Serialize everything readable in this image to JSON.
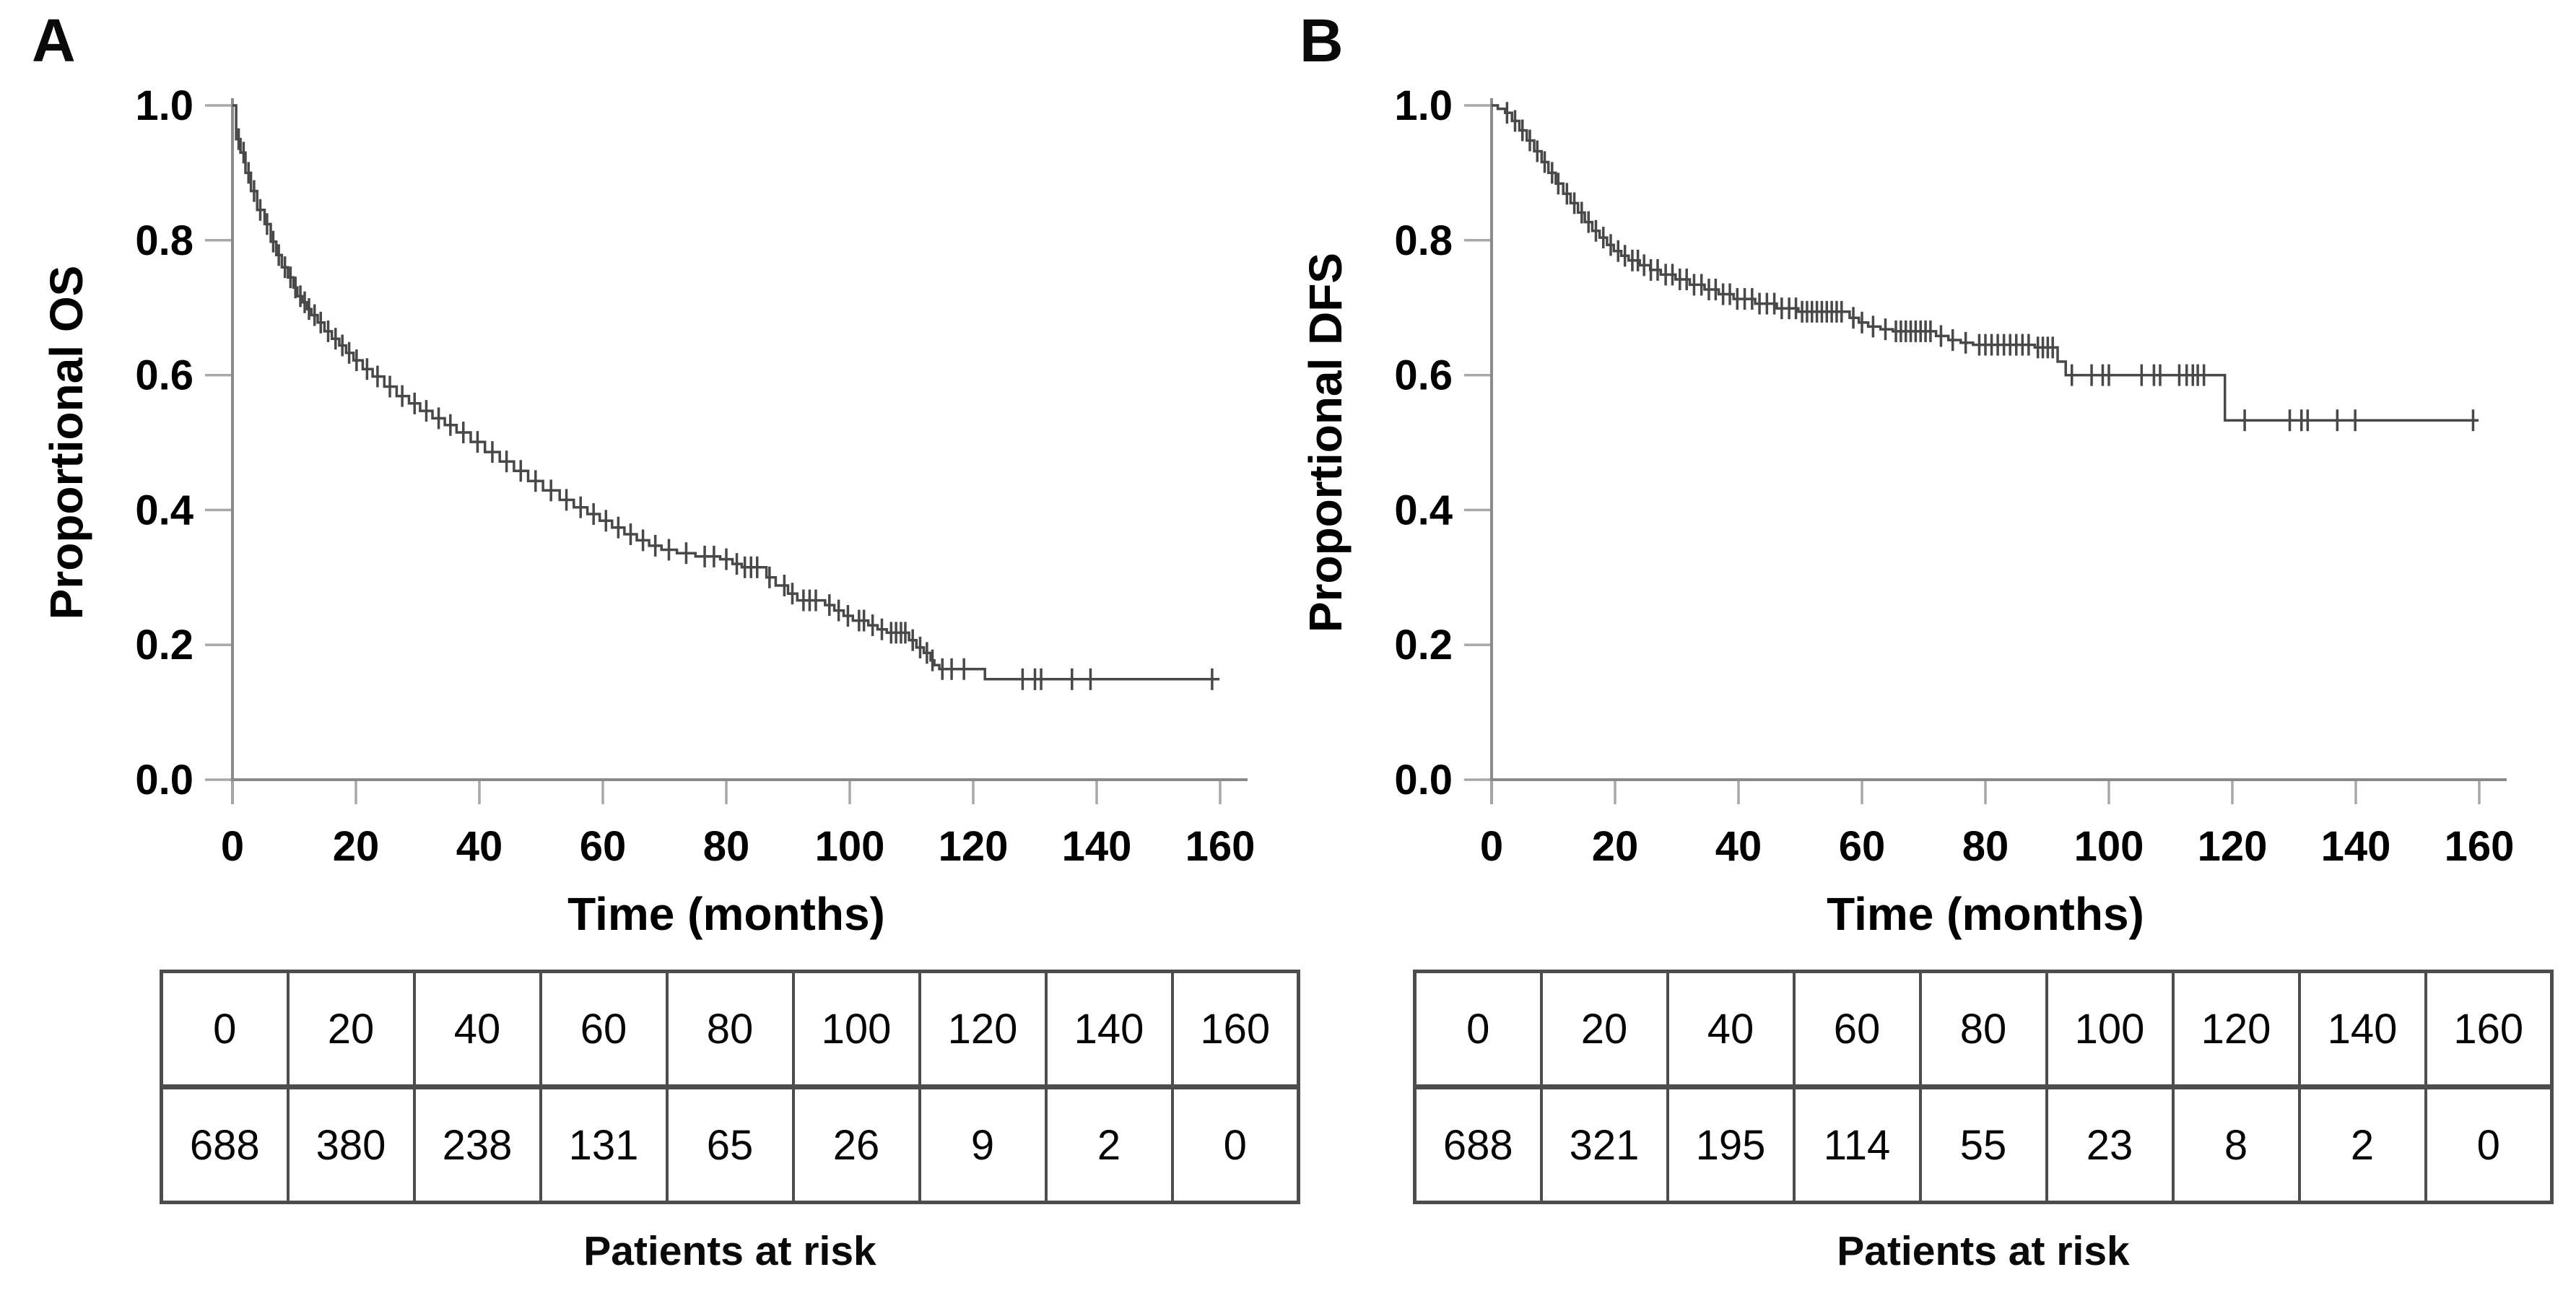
{
  "figure": {
    "background": "#ffffff",
    "text_color": "#000000",
    "curve_color": "#484848",
    "axis_color": "#8a8a8a",
    "tick_color": "#a8a8a8",
    "table_border_color": "#4d4d4d"
  },
  "chart_data": [
    {
      "type": "line",
      "subtype": "kaplan-meier",
      "panel": "A",
      "ylabel": "Proportional OS",
      "xlabel": "Time (months)",
      "xlim": [
        0,
        160
      ],
      "ylim": [
        0.0,
        1.0
      ],
      "x_ticks": [
        0,
        20,
        40,
        60,
        80,
        100,
        120,
        140,
        160
      ],
      "y_ticks": [
        0.0,
        0.2,
        0.4,
        0.6,
        0.8,
        1.0
      ],
      "x_end": 159.9,
      "km_steps": [
        [
          0,
          1.0
        ],
        [
          0.6,
          0.95
        ],
        [
          1.3,
          0.93
        ],
        [
          2.1,
          0.9
        ],
        [
          3,
          0.873
        ],
        [
          4,
          0.845
        ],
        [
          5.2,
          0.824
        ],
        [
          6.2,
          0.798
        ],
        [
          7.1,
          0.778
        ],
        [
          8,
          0.76
        ],
        [
          9,
          0.745
        ],
        [
          9.9,
          0.73
        ],
        [
          10.5,
          0.717
        ],
        [
          11.3,
          0.708
        ],
        [
          12.1,
          0.698
        ],
        [
          12.8,
          0.689
        ],
        [
          13.8,
          0.678
        ],
        [
          14.9,
          0.665
        ],
        [
          16.1,
          0.654
        ],
        [
          17.3,
          0.644
        ],
        [
          18.4,
          0.633
        ],
        [
          19.6,
          0.622
        ],
        [
          21.1,
          0.609
        ],
        [
          22.7,
          0.598
        ],
        [
          24.6,
          0.583
        ],
        [
          26.6,
          0.569
        ],
        [
          28.6,
          0.558
        ],
        [
          30.4,
          0.547
        ],
        [
          32.4,
          0.536
        ],
        [
          34.4,
          0.526
        ],
        [
          36.3,
          0.515
        ],
        [
          38.6,
          0.501
        ],
        [
          40.9,
          0.486
        ],
        [
          43.3,
          0.472
        ],
        [
          45.6,
          0.458
        ],
        [
          47.9,
          0.443
        ],
        [
          50.3,
          0.429
        ],
        [
          53,
          0.415
        ],
        [
          55.3,
          0.404
        ],
        [
          57.5,
          0.394
        ],
        [
          59.5,
          0.384
        ],
        [
          61.5,
          0.374
        ],
        [
          63.5,
          0.364
        ],
        [
          65.5,
          0.355
        ],
        [
          67.5,
          0.347
        ],
        [
          69.5,
          0.341
        ],
        [
          72,
          0.336
        ],
        [
          75,
          0.331
        ],
        [
          79,
          0.327
        ],
        [
          81,
          0.32
        ],
        [
          82.5,
          0.315
        ],
        [
          86.5,
          0.3
        ],
        [
          88,
          0.288
        ],
        [
          90,
          0.276
        ],
        [
          91.5,
          0.266
        ],
        [
          96,
          0.259
        ],
        [
          97.5,
          0.251
        ],
        [
          99,
          0.243
        ],
        [
          100.5,
          0.236
        ],
        [
          103,
          0.229
        ],
        [
          104.5,
          0.223
        ],
        [
          106,
          0.218
        ],
        [
          109.6,
          0.207
        ],
        [
          110.8,
          0.196
        ],
        [
          112,
          0.188
        ],
        [
          113.1,
          0.177
        ],
        [
          113.7,
          0.17
        ],
        [
          114.5,
          0.164
        ],
        [
          121.9,
          0.149
        ]
      ],
      "censor_times": [
        1,
        1.8,
        2.6,
        3.5,
        4.5,
        5.6,
        6.6,
        7.5,
        8.5,
        9.4,
        10.2,
        11,
        11.7,
        12.4,
        13.3,
        14.3,
        15.5,
        16.7,
        17.8,
        18.9,
        20.1,
        21.8,
        23.5,
        25.5,
        27.5,
        29.5,
        31.4,
        33.4,
        35.3,
        37.4,
        39.7,
        42.1,
        44.4,
        46.7,
        49.1,
        51.6,
        54.1,
        56.4,
        58.5,
        60.5,
        62.5,
        64.5,
        66.5,
        68.5,
        70.7,
        73.5,
        76.5,
        78,
        80,
        81.7,
        83,
        84,
        85,
        87,
        89.4,
        90.7,
        92.5,
        93.5,
        94.5,
        96.7,
        98.2,
        99.7,
        101.5,
        102.3,
        103.7,
        105.2,
        106.7,
        107.5,
        108.3,
        109,
        110.2,
        111.4,
        112.5,
        113.4,
        115,
        116.5,
        118.5,
        128,
        130,
        131,
        136,
        139,
        158.7
      ],
      "risk_table": {
        "times": [
          "0",
          "20",
          "40",
          "60",
          "80",
          "100",
          "120",
          "140",
          "160"
        ],
        "counts": [
          "688",
          "380",
          "238",
          "131",
          "65",
          "26",
          "9",
          "2",
          "0"
        ],
        "caption": "Patients at risk"
      }
    },
    {
      "type": "line",
      "subtype": "kaplan-meier",
      "panel": "B",
      "ylabel": "Proportional DFS",
      "xlabel": "Time (months)",
      "xlim": [
        0,
        160
      ],
      "ylim": [
        0.0,
        1.0
      ],
      "x_ticks": [
        0,
        20,
        40,
        60,
        80,
        100,
        120,
        140,
        160
      ],
      "y_ticks": [
        0.0,
        0.2,
        0.4,
        0.6,
        0.8,
        1.0
      ],
      "x_end": 159.9,
      "km_steps": [
        [
          0,
          1.0
        ],
        [
          1,
          0.995
        ],
        [
          2.2,
          0.989
        ],
        [
          3.3,
          0.977
        ],
        [
          4.5,
          0.963
        ],
        [
          5.7,
          0.948
        ],
        [
          6.9,
          0.932
        ],
        [
          8.1,
          0.916
        ],
        [
          9.2,
          0.9
        ],
        [
          10.4,
          0.884
        ],
        [
          11.6,
          0.869
        ],
        [
          12.8,
          0.855
        ],
        [
          14,
          0.841
        ],
        [
          15.1,
          0.827
        ],
        [
          16.3,
          0.814
        ],
        [
          17.5,
          0.804
        ],
        [
          18.7,
          0.793
        ],
        [
          19.8,
          0.784
        ],
        [
          21,
          0.777
        ],
        [
          22.2,
          0.77
        ],
        [
          24,
          0.763
        ],
        [
          25.7,
          0.756
        ],
        [
          27.4,
          0.749
        ],
        [
          29.8,
          0.742
        ],
        [
          32.1,
          0.734
        ],
        [
          34.5,
          0.727
        ],
        [
          36.8,
          0.72
        ],
        [
          39.2,
          0.713
        ],
        [
          42.7,
          0.706
        ],
        [
          46.2,
          0.699
        ],
        [
          49.7,
          0.694
        ],
        [
          58,
          0.685
        ],
        [
          59.5,
          0.678
        ],
        [
          61,
          0.672
        ],
        [
          63,
          0.668
        ],
        [
          65,
          0.665
        ],
        [
          72,
          0.658
        ],
        [
          74,
          0.652
        ],
        [
          76,
          0.648
        ],
        [
          78,
          0.645
        ],
        [
          88,
          0.641
        ],
        [
          91.7,
          0.62
        ],
        [
          93,
          0.6
        ],
        [
          118.8,
          0.533
        ]
      ],
      "censor_times": [
        2.5,
        3.8,
        5,
        6.2,
        7.4,
        8.6,
        9.8,
        10.8,
        12.2,
        13.4,
        14.6,
        15.7,
        16.9,
        18.1,
        19.3,
        20.5,
        21.6,
        22.8,
        23.7,
        24.7,
        25.8,
        26.9,
        28.2,
        29.3,
        30.5,
        31.6,
        32.8,
        34,
        35.2,
        36.3,
        37.5,
        38.6,
        39.8,
        41,
        42.2,
        43.4,
        44.6,
        45.8,
        47,
        48.2,
        49.3,
        50.3,
        51.1,
        51.9,
        52.7,
        53.5,
        54.3,
        55.1,
        55.9,
        56.7,
        58.6,
        60,
        61.8,
        63.8,
        65.5,
        66.3,
        67.1,
        67.9,
        68.7,
        69.5,
        70.3,
        71.1,
        72.8,
        74.7,
        76.8,
        79,
        80,
        81,
        82,
        83,
        84,
        85,
        86,
        87,
        88.5,
        89.3,
        90.1,
        90.9,
        94,
        97.2,
        99,
        100,
        105.3,
        107.3,
        108.3,
        111.4,
        112.6,
        113.6,
        114.4,
        115.4,
        122,
        129.3,
        131.2,
        132.2,
        137,
        139.9,
        159
      ],
      "risk_table": {
        "times": [
          "0",
          "20",
          "40",
          "60",
          "80",
          "100",
          "120",
          "140",
          "160"
        ],
        "counts": [
          "688",
          "321",
          "195",
          "114",
          "55",
          "23",
          "8",
          "2",
          "0"
        ],
        "caption": "Patients at risk"
      }
    }
  ]
}
